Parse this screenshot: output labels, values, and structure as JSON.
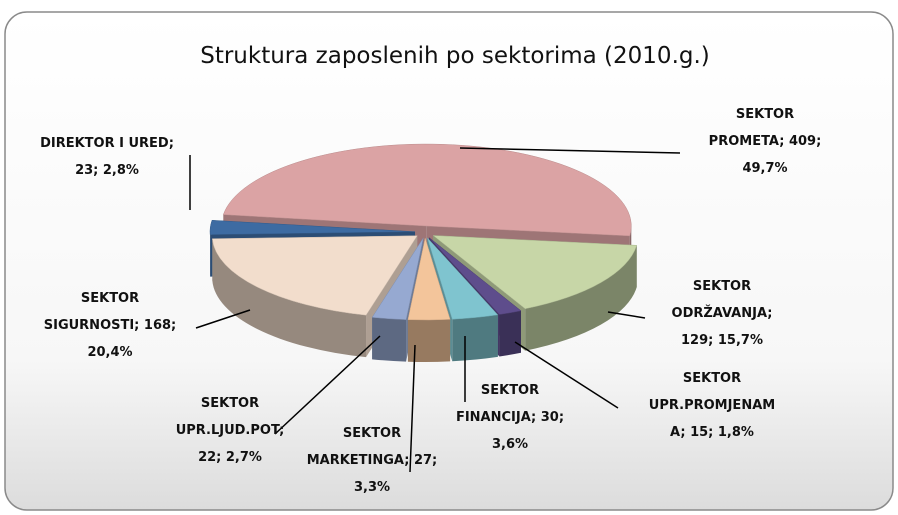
{
  "chart_data": {
    "type": "pie",
    "title": "Struktura zaposlenih po sektorima (2010.g.)",
    "values": [
      409,
      129,
      15,
      30,
      27,
      22,
      168,
      23
    ],
    "value_labels": [
      [
        "SEKTOR",
        "PROMETA; 409;",
        "49,7%"
      ],
      [
        "SEKTOR",
        "ODRŽAVANJA;",
        "129; 15,7%"
      ],
      [
        "SEKTOR",
        "UPR.PROMJENAM",
        "A; 15; 1,8%"
      ],
      [
        "SEKTOR",
        "FINANCIJA; 30;",
        "3,6%"
      ],
      [
        "SEKTOR",
        "MARKETINGA; 27;",
        "3,3%"
      ],
      [
        "SEKTOR",
        "UPR.LJUD.POT;",
        "22; 2,7%"
      ],
      [
        "SEKTOR",
        "SIGURNOSTI; 168;",
        "20,4%"
      ],
      [
        "DIREKTOR I URED;",
        "23; 2,8%"
      ]
    ],
    "colors": [
      "#dba3a4",
      "#c7d6a7",
      "#5e4d8c",
      "#7fc4cf",
      "#f3c59b",
      "#96a9d1",
      "#f2ddcc",
      "#3d6ba2"
    ]
  }
}
